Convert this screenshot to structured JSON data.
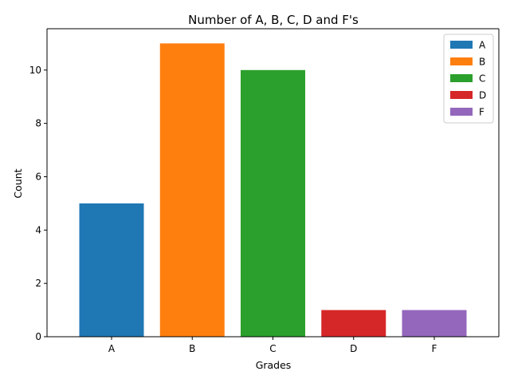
{
  "chart_data": {
    "type": "bar",
    "title": "Number of A, B, C, D and F's",
    "xlabel": "Grades",
    "ylabel": "Count",
    "categories": [
      "A",
      "B",
      "C",
      "D",
      "F"
    ],
    "series": [
      {
        "name": "A",
        "values": [
          5,
          0,
          0,
          0,
          0
        ],
        "color": "#1f77b4"
      },
      {
        "name": "B",
        "values": [
          0,
          11,
          0,
          0,
          0
        ],
        "color": "#ff7f0e"
      },
      {
        "name": "C",
        "values": [
          0,
          0,
          10,
          0,
          0
        ],
        "color": "#2ca02c"
      },
      {
        "name": "D",
        "values": [
          0,
          0,
          0,
          1,
          0
        ],
        "color": "#d62728"
      },
      {
        "name": "F",
        "values": [
          0,
          0,
          0,
          0,
          1
        ],
        "color": "#9467bd"
      }
    ],
    "ylim": [
      0,
      11.55
    ],
    "yticks": [
      0,
      2,
      4,
      6,
      8,
      10
    ],
    "grid": false,
    "legend_position": "top-right"
  }
}
